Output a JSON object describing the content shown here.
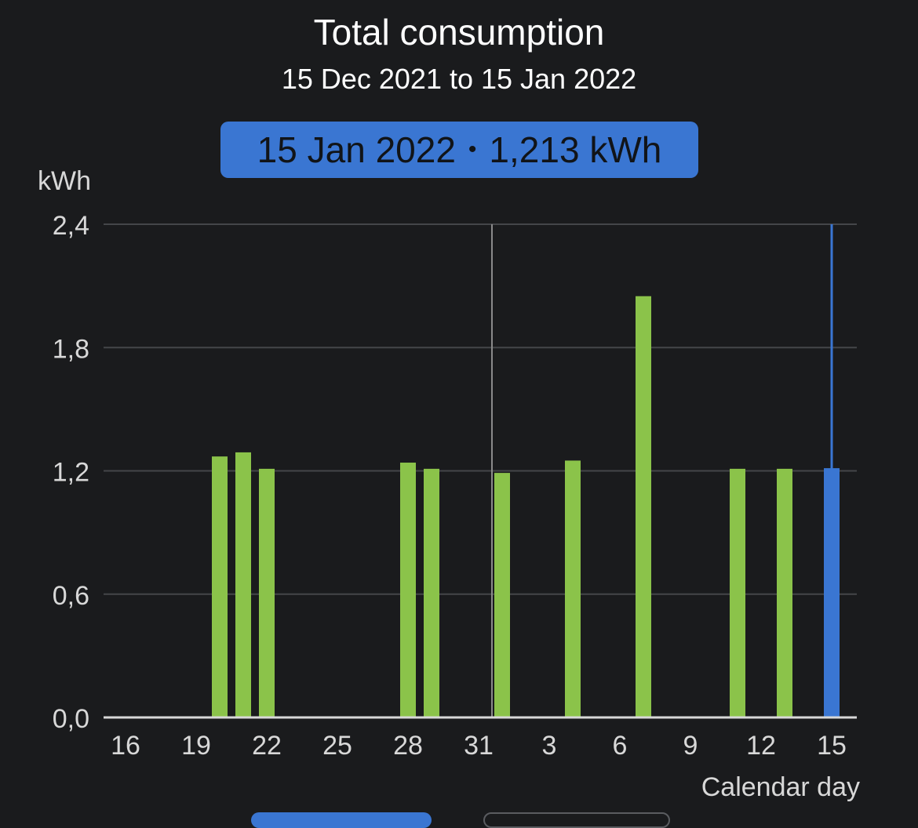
{
  "header": {
    "title": "Total consumption",
    "subtitle": "15 Dec 2021 to 15 Jan 2022"
  },
  "tooltip": {
    "date": "15 Jan 2022",
    "separator": "•",
    "value": "1,213 kWh"
  },
  "chart_data": {
    "type": "bar",
    "title": "Total consumption",
    "subtitle": "15 Dec 2021 to 15 Jan 2022",
    "ylabel": "kWh",
    "xlabel": "Calendar day",
    "ylim": [
      0,
      2.4
    ],
    "yticks": [
      "0,0",
      "0,6",
      "1,2",
      "1,8",
      "2,4"
    ],
    "ytick_values": [
      0,
      0.6,
      1.2,
      1.8,
      2.4
    ],
    "xticks": [
      "16",
      "19",
      "22",
      "25",
      "28",
      "31",
      "3",
      "6",
      "9",
      "12",
      "15"
    ],
    "categories": [
      "16",
      "17",
      "18",
      "19",
      "20",
      "21",
      "22",
      "23",
      "24",
      "25",
      "26",
      "27",
      "28",
      "29",
      "30",
      "31",
      "1",
      "2",
      "3",
      "4",
      "5",
      "6",
      "7",
      "8",
      "9",
      "10",
      "11",
      "12",
      "13",
      "14",
      "15"
    ],
    "values": [
      0,
      0,
      0,
      0,
      1.27,
      1.29,
      1.21,
      0,
      0,
      0,
      0,
      0,
      1.24,
      1.21,
      0,
      0,
      1.19,
      0,
      0,
      1.25,
      0,
      0,
      2.05,
      0,
      0,
      0,
      1.21,
      0,
      1.21,
      0,
      1.213
    ],
    "selected_index": 30,
    "grid": true,
    "colors": {
      "bar": "#8bc34a",
      "selected": "#3a76d2",
      "grid": "#444649",
      "axis": "#d8d8d8",
      "month_divider": "#8a8a8a"
    }
  }
}
